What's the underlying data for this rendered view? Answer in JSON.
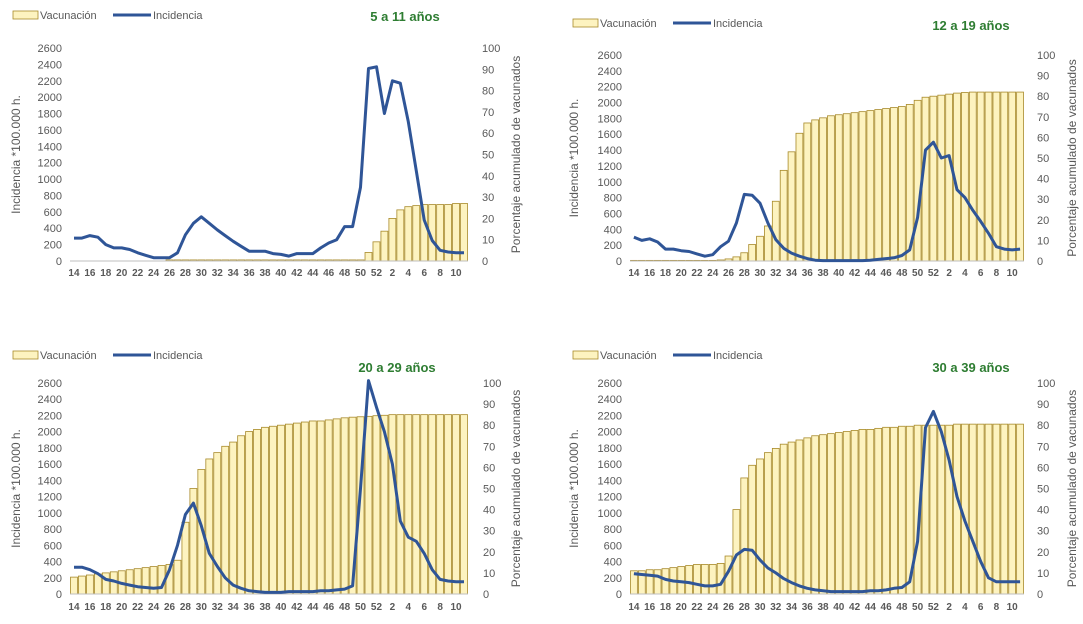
{
  "x_ticks": [
    "14",
    "16",
    "18",
    "20",
    "22",
    "24",
    "26",
    "28",
    "30",
    "32",
    "34",
    "36",
    "38",
    "40",
    "42",
    "44",
    "46",
    "48",
    "50",
    "52",
    "2",
    "4",
    "6",
    "8",
    "10"
  ],
  "y_left_ticks": [
    "0",
    "200",
    "400",
    "600",
    "800",
    "1000",
    "1200",
    "1400",
    "1600",
    "1800",
    "2000",
    "2200",
    "2400",
    "2600"
  ],
  "y_right_ticks": [
    "0",
    "10",
    "20",
    "30",
    "40",
    "50",
    "60",
    "70",
    "80",
    "90",
    "100"
  ],
  "y_left_label": "Incidencia *100.000 h.",
  "y_right_label": "Porcentaje acumulado de vacunados",
  "legend": {
    "bar": "Vacunación",
    "line": "Incidencia"
  },
  "colors": {
    "bar_fill": "#fdf3c0",
    "bar_stroke": "#a88a2a",
    "line": "#2f5597",
    "title": "#2e7d32",
    "text": "#595959"
  },
  "chart_data": [
    {
      "type": "bar+line",
      "title": "5 a 11 años",
      "x": [
        "14",
        "15",
        "16",
        "17",
        "18",
        "19",
        "20",
        "21",
        "22",
        "23",
        "24",
        "25",
        "26",
        "27",
        "28",
        "29",
        "30",
        "31",
        "32",
        "33",
        "34",
        "35",
        "36",
        "37",
        "38",
        "39",
        "40",
        "41",
        "42",
        "43",
        "44",
        "45",
        "46",
        "47",
        "48",
        "49",
        "50",
        "51",
        "52",
        "1",
        "2",
        "3",
        "4",
        "5",
        "6",
        "7",
        "8",
        "9",
        "10",
        "11"
      ],
      "series": [
        {
          "name": "Vacunación",
          "axis": "right",
          "kind": "bar",
          "values": [
            null,
            null,
            null,
            null,
            null,
            null,
            null,
            null,
            null,
            null,
            null,
            null,
            0.5,
            0.5,
            0.5,
            0.5,
            0.5,
            0.5,
            0.5,
            0.5,
            0.5,
            0.5,
            0.5,
            0.5,
            0.5,
            0.5,
            0.5,
            0.5,
            0.5,
            0.5,
            0.5,
            0.5,
            0.5,
            0.5,
            0.5,
            0.5,
            0.5,
            4,
            9,
            14,
            20,
            24,
            25.5,
            26,
            26.5,
            26.5,
            26.5,
            26.5,
            27,
            27
          ]
        },
        {
          "name": "Incidencia",
          "axis": "left",
          "kind": "line",
          "values": [
            280,
            280,
            310,
            290,
            200,
            160,
            160,
            140,
            100,
            70,
            40,
            40,
            40,
            100,
            320,
            460,
            540,
            460,
            380,
            310,
            240,
            180,
            120,
            120,
            120,
            90,
            80,
            60,
            90,
            90,
            90,
            160,
            220,
            260,
            420,
            420,
            900,
            2350,
            2370,
            1800,
            2200,
            2170,
            1700,
            1100,
            500,
            250,
            130,
            110,
            100,
            100
          ]
        }
      ],
      "ylim_left": [
        0,
        2600
      ],
      "ylim_right": [
        0,
        100
      ]
    },
    {
      "type": "bar+line",
      "title": "12 a 19 años",
      "x": [
        "14",
        "15",
        "16",
        "17",
        "18",
        "19",
        "20",
        "21",
        "22",
        "23",
        "24",
        "25",
        "26",
        "27",
        "28",
        "29",
        "30",
        "31",
        "32",
        "33",
        "34",
        "35",
        "36",
        "37",
        "38",
        "39",
        "40",
        "41",
        "42",
        "43",
        "44",
        "45",
        "46",
        "47",
        "48",
        "49",
        "50",
        "51",
        "52",
        "1",
        "2",
        "3",
        "4",
        "5",
        "6",
        "7",
        "8",
        "9",
        "10",
        "11"
      ],
      "series": [
        {
          "name": "Vacunación",
          "axis": "right",
          "kind": "bar",
          "values": [
            0.3,
            0.3,
            0.3,
            0.3,
            0.3,
            0.3,
            0.3,
            0.3,
            0.3,
            0.3,
            0.3,
            0.5,
            1,
            2,
            4,
            8,
            12,
            17,
            29,
            44,
            53,
            62,
            67,
            68.5,
            69.5,
            70.5,
            71,
            71.5,
            72,
            72.5,
            73,
            73.5,
            74,
            74.5,
            75,
            76,
            78,
            79.5,
            80,
            80.5,
            81,
            81.5,
            81.8,
            82,
            82,
            82,
            82,
            82,
            82,
            82
          ]
        },
        {
          "name": "Incidencia",
          "axis": "left",
          "kind": "line",
          "values": [
            300,
            260,
            280,
            240,
            150,
            150,
            130,
            120,
            90,
            60,
            80,
            180,
            250,
            480,
            840,
            830,
            730,
            480,
            270,
            160,
            100,
            60,
            30,
            10,
            5,
            5,
            5,
            5,
            5,
            5,
            10,
            20,
            30,
            40,
            70,
            140,
            550,
            1400,
            1500,
            1300,
            1330,
            900,
            800,
            640,
            500,
            350,
            180,
            150,
            140,
            150
          ]
        }
      ],
      "ylim_left": [
        0,
        2600
      ],
      "ylim_right": [
        0,
        100
      ]
    },
    {
      "type": "bar+line",
      "title": "20 a 29 años",
      "x": [
        "14",
        "15",
        "16",
        "17",
        "18",
        "19",
        "20",
        "21",
        "22",
        "23",
        "24",
        "25",
        "26",
        "27",
        "28",
        "29",
        "30",
        "31",
        "32",
        "33",
        "34",
        "35",
        "36",
        "37",
        "38",
        "39",
        "40",
        "41",
        "42",
        "43",
        "44",
        "45",
        "46",
        "47",
        "48",
        "49",
        "50",
        "51",
        "52",
        "1",
        "2",
        "3",
        "4",
        "5",
        "6",
        "7",
        "8",
        "9",
        "10",
        "11"
      ],
      "series": [
        {
          "name": "Vacunación",
          "axis": "right",
          "kind": "bar",
          "values": [
            8,
            8.5,
            9,
            9.5,
            10,
            10.5,
            11,
            11.5,
            12,
            12.5,
            13,
            13.5,
            14,
            16,
            34,
            50,
            59,
            64,
            67,
            70,
            72,
            75,
            77,
            78,
            79,
            79.5,
            80,
            80.5,
            81,
            81.5,
            82,
            82,
            82.5,
            83,
            83.5,
            83.8,
            84,
            84.2,
            84.5,
            84.7,
            85,
            85,
            85,
            85,
            85,
            85,
            85,
            85,
            85,
            85
          ]
        },
        {
          "name": "Incidencia",
          "axis": "left",
          "kind": "line",
          "values": [
            330,
            330,
            300,
            250,
            180,
            160,
            130,
            110,
            90,
            80,
            70,
            80,
            300,
            600,
            980,
            1120,
            840,
            500,
            340,
            200,
            110,
            70,
            40,
            30,
            20,
            20,
            20,
            30,
            30,
            30,
            30,
            40,
            40,
            50,
            60,
            100,
            1300,
            2630,
            2300,
            2000,
            1600,
            900,
            700,
            650,
            500,
            300,
            180,
            160,
            150,
            150
          ]
        }
      ],
      "ylim_left": [
        0,
        2600
      ],
      "ylim_right": [
        0,
        100
      ]
    },
    {
      "type": "bar+line",
      "title": "30 a 39 años",
      "x": [
        "14",
        "15",
        "16",
        "17",
        "18",
        "19",
        "20",
        "21",
        "22",
        "23",
        "24",
        "25",
        "26",
        "27",
        "28",
        "29",
        "30",
        "31",
        "32",
        "33",
        "34",
        "35",
        "36",
        "37",
        "38",
        "39",
        "40",
        "41",
        "42",
        "43",
        "44",
        "45",
        "46",
        "47",
        "48",
        "49",
        "50",
        "51",
        "52",
        "1",
        "2",
        "3",
        "4",
        "5",
        "6",
        "7",
        "8",
        "9",
        "10",
        "11"
      ],
      "series": [
        {
          "name": "Vacunación",
          "axis": "right",
          "kind": "bar",
          "values": [
            11,
            11,
            11.5,
            11.5,
            12,
            12.5,
            13,
            13.5,
            14,
            14,
            14,
            14.5,
            18,
            40,
            55,
            61,
            64,
            67,
            69,
            71,
            72,
            73,
            74,
            75,
            75.5,
            76,
            76.5,
            77,
            77.5,
            78,
            78,
            78.5,
            79,
            79,
            79.5,
            79.5,
            80,
            80,
            80,
            80,
            80,
            80.5,
            80.5,
            80.5,
            80.5,
            80.5,
            80.5,
            80.5,
            80.5,
            80.5
          ]
        },
        {
          "name": "Incidencia",
          "axis": "left",
          "kind": "line",
          "values": [
            250,
            240,
            230,
            220,
            180,
            160,
            150,
            140,
            120,
            100,
            100,
            120,
            280,
            480,
            550,
            540,
            420,
            320,
            260,
            190,
            140,
            100,
            70,
            50,
            40,
            30,
            30,
            30,
            30,
            30,
            40,
            40,
            50,
            70,
            80,
            150,
            650,
            2050,
            2250,
            2000,
            1650,
            1200,
            900,
            650,
            400,
            200,
            150,
            150,
            150,
            150
          ]
        }
      ],
      "ylim_left": [
        0,
        2600
      ],
      "ylim_right": [
        0,
        100
      ]
    }
  ]
}
